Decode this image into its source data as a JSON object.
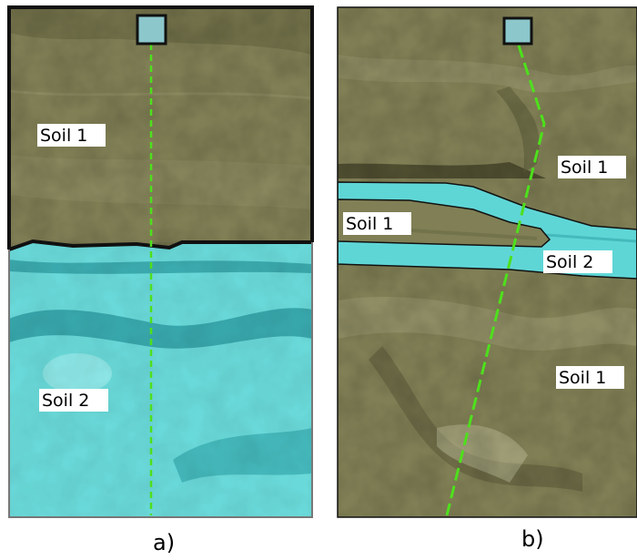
{
  "panel_a": {
    "caption": "a)",
    "labels": {
      "upper": "Soil 1",
      "lower": "Soil 2"
    }
  },
  "panel_b": {
    "caption": "b)",
    "labels": {
      "upper_right": "Soil 1",
      "left_wedge": "Soil 1",
      "band": "Soil 2",
      "lower_right": "Soil 1"
    }
  },
  "colors": {
    "soil_1": "#807f55",
    "soil_2": "#5fd6d6",
    "profile_line": "#4ee01c",
    "sensor": "#8cc7cc"
  },
  "icons": [
    "sensor-square-icon"
  ]
}
